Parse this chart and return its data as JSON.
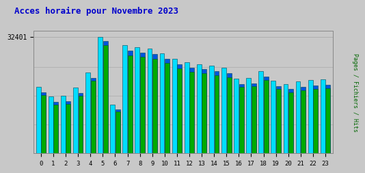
{
  "title": "Acces horaire pour Novembre 2023",
  "title_color": "#0000cc",
  "title_fontsize": 9,
  "ylabel_right": "Pages / Fichiers / Hits",
  "ylabel_right_color": "#006600",
  "background_color": "#c8c8c8",
  "plot_bg_color": "#c8c8c8",
  "ytick_label": "32401",
  "ytick_value": 32401,
  "categories": [
    0,
    1,
    2,
    3,
    4,
    5,
    6,
    7,
    8,
    9,
    10,
    11,
    12,
    13,
    14,
    15,
    16,
    17,
    18,
    19,
    20,
    21,
    22,
    23
  ],
  "hits_values": [
    18500,
    15800,
    16000,
    18200,
    22500,
    32401,
    13500,
    30000,
    29500,
    29000,
    27800,
    26200,
    25300,
    24800,
    24300,
    23800,
    20800,
    21000,
    22800,
    20200,
    19300,
    20000,
    20300,
    20500
  ],
  "pages_values": [
    17000,
    14300,
    14500,
    16700,
    21000,
    31200,
    12200,
    28500,
    28000,
    27500,
    26300,
    24800,
    23800,
    23300,
    22800,
    22300,
    19300,
    19500,
    21300,
    18700,
    17800,
    18500,
    18800,
    19000
  ],
  "fichiers_values": [
    16200,
    13600,
    13800,
    15900,
    20100,
    30000,
    11600,
    27200,
    26800,
    26200,
    25100,
    23600,
    22700,
    22200,
    21700,
    21200,
    18400,
    18600,
    20300,
    17800,
    16900,
    17600,
    17900,
    18100
  ],
  "hits_color": "#00ddff",
  "pages_color": "#0055dd",
  "fichiers_color": "#00aa00",
  "bar_edge_color": "#004455",
  "ylim": [
    0,
    34000
  ],
  "font_family": "monospace",
  "grid_color": "#aaaaaa",
  "bar_width": 0.38,
  "bar_gap": 0.04
}
